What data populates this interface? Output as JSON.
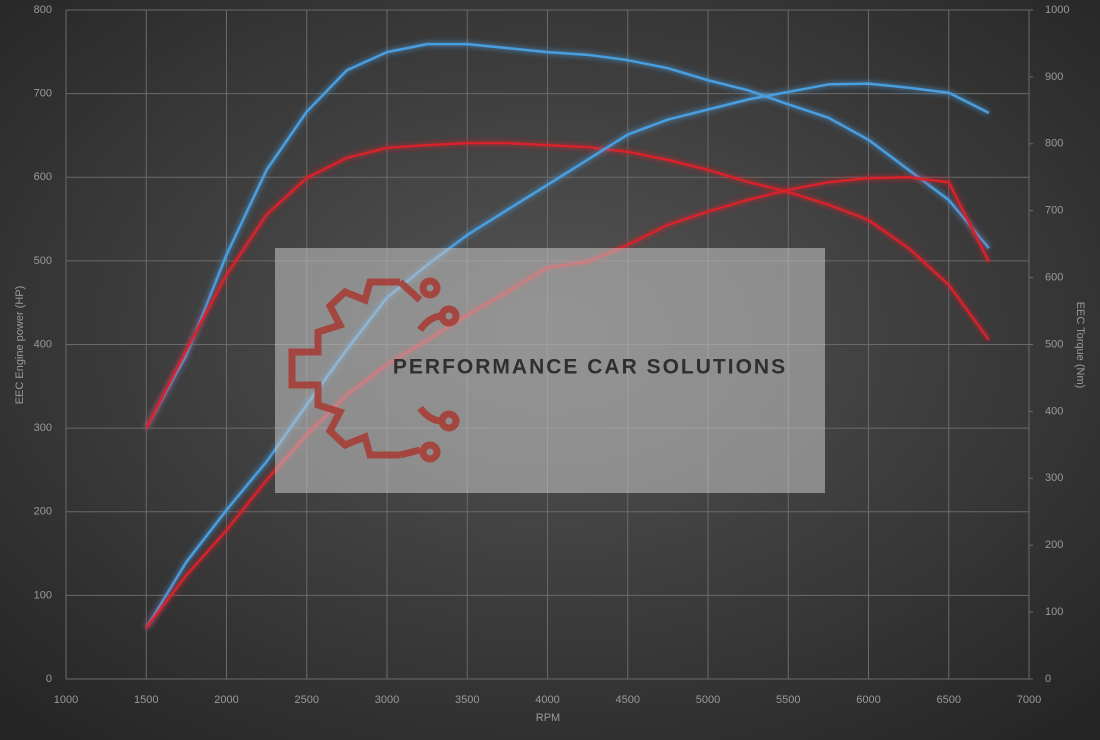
{
  "chart_data": {
    "type": "line",
    "xlabel": "RPM",
    "ylabel": "EEC Engine power (HP)",
    "y2label": "EEC Torque (Nm)",
    "watermark": "PERFORMANCE CAR SOLUTIONS",
    "x": [
      1500,
      1750,
      2000,
      2250,
      2500,
      2750,
      3000,
      3250,
      3500,
      3750,
      4000,
      4250,
      4500,
      4750,
      5000,
      5250,
      5500,
      5750,
      6000,
      6250,
      6500,
      6750
    ],
    "series": [
      {
        "color": "#4a9ee0",
        "axis": "y2",
        "values": [
          375,
          484,
          634,
          761,
          848,
          910,
          937,
          949,
          949,
          943,
          937,
          933,
          925,
          913,
          895,
          880,
          859,
          839,
          806,
          761,
          716,
          644
        ]
      },
      {
        "color": "#d8202a",
        "axis": "y2",
        "values": [
          375,
          492,
          604,
          694,
          749,
          779,
          794,
          798,
          801,
          801,
          798,
          795,
          788,
          776,
          761,
          743,
          728,
          709,
          686,
          644,
          589,
          507
        ]
      },
      {
        "color": "#4a9ee0",
        "axis": "y",
        "values": [
          61,
          140,
          202,
          260,
          328,
          394,
          456,
          495,
          531,
          561,
          591,
          621,
          651,
          669,
          681,
          693,
          702,
          711,
          712,
          707,
          701,
          677
        ]
      },
      {
        "color": "#d8202a",
        "axis": "y",
        "values": [
          61,
          124,
          178,
          238,
          292,
          340,
          376,
          405,
          435,
          463,
          492,
          499,
          519,
          543,
          559,
          573,
          585,
          594,
          599,
          600,
          594,
          499
        ]
      }
    ],
    "xlim": [
      1000,
      7000
    ],
    "xticks": [
      1000,
      1500,
      2000,
      2500,
      3000,
      3500,
      4000,
      4500,
      5000,
      5500,
      6000,
      6500,
      7000
    ],
    "ylim": [
      0,
      800
    ],
    "yticks": [
      0,
      100,
      200,
      300,
      400,
      500,
      600,
      700,
      800
    ],
    "y2lim": [
      0,
      1000
    ],
    "y2ticks": [
      0,
      100,
      200,
      300,
      400,
      500,
      600,
      700,
      800,
      900,
      1000
    ],
    "grid": true
  }
}
